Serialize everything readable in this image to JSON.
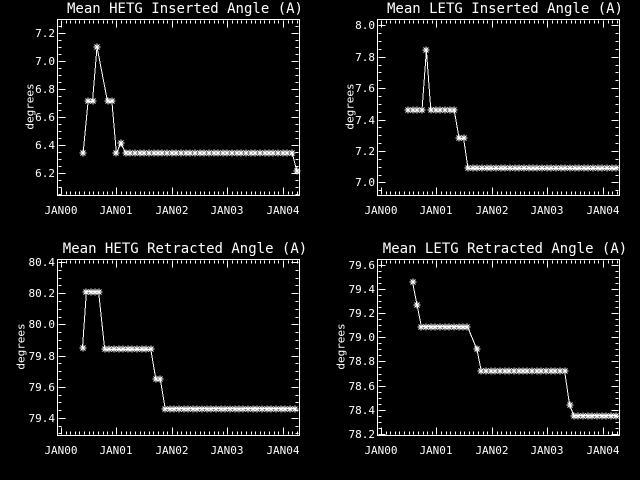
{
  "window": {
    "background": "#000000",
    "foreground": "#ffffff"
  },
  "chart_data": [
    {
      "type": "line",
      "title": "Mean HETG Inserted Angle (A)",
      "ylabel": "degrees",
      "series_color": "#ffffff",
      "marker": "asterisk",
      "grid": false,
      "xlim": [
        1999.93,
        2004.29
      ],
      "ylim": [
        6.04,
        7.3
      ],
      "xticks": [
        2000,
        2001,
        2002,
        2003,
        2004
      ],
      "xtick_labels": [
        "JAN00",
        "JAN01",
        "JAN02",
        "JAN03",
        "JAN04"
      ],
      "x_minor_step": 0.08333,
      "yticks": [
        6.2,
        6.4,
        6.6,
        6.8,
        7.0,
        7.2
      ],
      "ytick_labels": [
        "6.2",
        "6.4",
        "6.6",
        "6.8",
        "7.0",
        "7.2"
      ],
      "y_minor_step": 0.05,
      "points": [
        [
          2000.4,
          6.34
        ],
        [
          2000.49,
          6.71
        ],
        [
          2000.57,
          6.71
        ],
        [
          2000.65,
          7.1
        ],
        [
          2000.84,
          6.71
        ],
        [
          2000.92,
          6.71
        ],
        [
          2001.0,
          6.34
        ],
        [
          2001.08,
          6.41
        ],
        [
          2001.17,
          6.34
        ],
        [
          2001.25,
          6.34
        ],
        [
          2001.33,
          6.34
        ],
        [
          2001.42,
          6.34
        ],
        [
          2001.5,
          6.34
        ],
        [
          2001.58,
          6.34
        ],
        [
          2001.67,
          6.34
        ],
        [
          2001.75,
          6.34
        ],
        [
          2001.83,
          6.34
        ],
        [
          2001.92,
          6.34
        ],
        [
          2002.0,
          6.34
        ],
        [
          2002.08,
          6.34
        ],
        [
          2002.17,
          6.34
        ],
        [
          2002.25,
          6.34
        ],
        [
          2002.33,
          6.34
        ],
        [
          2002.42,
          6.34
        ],
        [
          2002.5,
          6.34
        ],
        [
          2002.58,
          6.34
        ],
        [
          2002.67,
          6.34
        ],
        [
          2002.75,
          6.34
        ],
        [
          2002.83,
          6.34
        ],
        [
          2002.92,
          6.34
        ],
        [
          2003.0,
          6.34
        ],
        [
          2003.08,
          6.34
        ],
        [
          2003.17,
          6.34
        ],
        [
          2003.25,
          6.34
        ],
        [
          2003.33,
          6.34
        ],
        [
          2003.42,
          6.34
        ],
        [
          2003.5,
          6.34
        ],
        [
          2003.58,
          6.34
        ],
        [
          2003.67,
          6.34
        ],
        [
          2003.75,
          6.34
        ],
        [
          2003.83,
          6.34
        ],
        [
          2003.92,
          6.34
        ],
        [
          2004.0,
          6.34
        ],
        [
          2004.08,
          6.34
        ],
        [
          2004.17,
          6.34
        ],
        [
          2004.25,
          6.21
        ]
      ]
    },
    {
      "type": "line",
      "title": "Mean LETG Inserted Angle (A)",
      "ylabel": "degrees",
      "series_color": "#ffffff",
      "marker": "asterisk",
      "grid": false,
      "xlim": [
        1999.93,
        2004.29
      ],
      "ylim": [
        6.92,
        8.04
      ],
      "xticks": [
        2000,
        2001,
        2002,
        2003,
        2004
      ],
      "xtick_labels": [
        "JAN00",
        "JAN01",
        "JAN02",
        "JAN03",
        "JAN04"
      ],
      "x_minor_step": 0.08333,
      "yticks": [
        7.0,
        7.2,
        7.4,
        7.6,
        7.8,
        8.0
      ],
      "ytick_labels": [
        "7.0",
        "7.2",
        "7.4",
        "7.6",
        "7.8",
        "8.0"
      ],
      "y_minor_step": 0.05,
      "points": [
        [
          2000.49,
          7.46
        ],
        [
          2000.57,
          7.46
        ],
        [
          2000.65,
          7.46
        ],
        [
          2000.74,
          7.46
        ],
        [
          2000.82,
          7.84
        ],
        [
          2000.9,
          7.46
        ],
        [
          2000.99,
          7.46
        ],
        [
          2001.07,
          7.46
        ],
        [
          2001.16,
          7.46
        ],
        [
          2001.24,
          7.46
        ],
        [
          2001.32,
          7.46
        ],
        [
          2001.41,
          7.28
        ],
        [
          2001.49,
          7.28
        ],
        [
          2001.57,
          7.09
        ],
        [
          2001.66,
          7.09
        ],
        [
          2001.74,
          7.09
        ],
        [
          2001.82,
          7.09
        ],
        [
          2001.91,
          7.09
        ],
        [
          2001.99,
          7.09
        ],
        [
          2002.07,
          7.09
        ],
        [
          2002.16,
          7.09
        ],
        [
          2002.24,
          7.09
        ],
        [
          2002.32,
          7.09
        ],
        [
          2002.41,
          7.09
        ],
        [
          2002.49,
          7.09
        ],
        [
          2002.57,
          7.09
        ],
        [
          2002.66,
          7.09
        ],
        [
          2002.74,
          7.09
        ],
        [
          2002.82,
          7.09
        ],
        [
          2002.91,
          7.09
        ],
        [
          2002.99,
          7.09
        ],
        [
          2003.07,
          7.09
        ],
        [
          2003.16,
          7.09
        ],
        [
          2003.24,
          7.09
        ],
        [
          2003.32,
          7.09
        ],
        [
          2003.41,
          7.09
        ],
        [
          2003.49,
          7.09
        ],
        [
          2003.57,
          7.09
        ],
        [
          2003.66,
          7.09
        ],
        [
          2003.74,
          7.09
        ],
        [
          2003.82,
          7.09
        ],
        [
          2003.91,
          7.09
        ],
        [
          2003.99,
          7.09
        ],
        [
          2004.07,
          7.09
        ],
        [
          2004.16,
          7.09
        ],
        [
          2004.24,
          7.09
        ]
      ]
    },
    {
      "type": "line",
      "title": "Mean HETG Retracted Angle (A)",
      "ylabel": "degrees",
      "series_color": "#ffffff",
      "marker": "asterisk",
      "grid": false,
      "xlim": [
        1999.93,
        2004.29
      ],
      "ylim": [
        79.29,
        80.42
      ],
      "xticks": [
        2000,
        2001,
        2002,
        2003,
        2004
      ],
      "xtick_labels": [
        "JAN00",
        "JAN01",
        "JAN02",
        "JAN03",
        "JAN04"
      ],
      "x_minor_step": 0.08333,
      "yticks": [
        79.4,
        79.6,
        79.8,
        80.0,
        80.2,
        80.4
      ],
      "ytick_labels": [
        "79.4",
        "79.6",
        "79.8",
        "80.0",
        "80.2",
        "80.4"
      ],
      "y_minor_step": 0.05,
      "points": [
        [
          2000.39,
          79.85
        ],
        [
          2000.46,
          80.21
        ],
        [
          2000.54,
          80.21
        ],
        [
          2000.62,
          80.21
        ],
        [
          2000.68,
          80.21
        ],
        [
          2000.79,
          79.84
        ],
        [
          2000.87,
          79.84
        ],
        [
          2000.96,
          79.84
        ],
        [
          2001.04,
          79.84
        ],
        [
          2001.12,
          79.84
        ],
        [
          2001.21,
          79.84
        ],
        [
          2001.29,
          79.84
        ],
        [
          2001.37,
          79.84
        ],
        [
          2001.46,
          79.84
        ],
        [
          2001.54,
          79.84
        ],
        [
          2001.62,
          79.84
        ],
        [
          2001.71,
          79.65
        ],
        [
          2001.79,
          79.65
        ],
        [
          2001.88,
          79.46
        ],
        [
          2001.96,
          79.46
        ],
        [
          2002.04,
          79.46
        ],
        [
          2002.13,
          79.46
        ],
        [
          2002.21,
          79.46
        ],
        [
          2002.29,
          79.46
        ],
        [
          2002.38,
          79.46
        ],
        [
          2002.46,
          79.46
        ],
        [
          2002.54,
          79.46
        ],
        [
          2002.63,
          79.46
        ],
        [
          2002.71,
          79.46
        ],
        [
          2002.79,
          79.46
        ],
        [
          2002.88,
          79.46
        ],
        [
          2002.96,
          79.46
        ],
        [
          2003.04,
          79.46
        ],
        [
          2003.13,
          79.46
        ],
        [
          2003.21,
          79.46
        ],
        [
          2003.29,
          79.46
        ],
        [
          2003.38,
          79.46
        ],
        [
          2003.46,
          79.46
        ],
        [
          2003.54,
          79.46
        ],
        [
          2003.63,
          79.46
        ],
        [
          2003.71,
          79.46
        ],
        [
          2003.79,
          79.46
        ],
        [
          2003.88,
          79.46
        ],
        [
          2003.96,
          79.46
        ],
        [
          2004.04,
          79.46
        ],
        [
          2004.13,
          79.46
        ],
        [
          2004.21,
          79.46
        ]
      ]
    },
    {
      "type": "line",
      "title": "Mean LETG Retracted Angle (A)",
      "ylabel": "degrees",
      "series_color": "#ffffff",
      "marker": "asterisk",
      "grid": false,
      "xlim": [
        1999.93,
        2004.29
      ],
      "ylim": [
        78.19,
        79.65
      ],
      "xticks": [
        2000,
        2001,
        2002,
        2003,
        2004
      ],
      "xtick_labels": [
        "JAN00",
        "JAN01",
        "JAN02",
        "JAN03",
        "JAN04"
      ],
      "x_minor_step": 0.08333,
      "yticks": [
        78.2,
        78.4,
        78.6,
        78.8,
        79.0,
        79.2,
        79.4,
        79.6
      ],
      "ytick_labels": [
        "78.2",
        "78.4",
        "78.6",
        "78.8",
        "79.0",
        "79.2",
        "79.4",
        "79.6"
      ],
      "y_minor_step": 0.05,
      "points": [
        [
          2000.57,
          79.46
        ],
        [
          2000.65,
          79.27
        ],
        [
          2000.73,
          79.09
        ],
        [
          2000.81,
          79.09
        ],
        [
          2000.9,
          79.09
        ],
        [
          2000.98,
          79.09
        ],
        [
          2001.06,
          79.09
        ],
        [
          2001.15,
          79.09
        ],
        [
          2001.23,
          79.09
        ],
        [
          2001.31,
          79.09
        ],
        [
          2001.4,
          79.09
        ],
        [
          2001.48,
          79.09
        ],
        [
          2001.56,
          79.09
        ],
        [
          2001.73,
          78.9
        ],
        [
          2001.81,
          78.72
        ],
        [
          2001.89,
          78.72
        ],
        [
          2001.98,
          78.72
        ],
        [
          2002.06,
          78.72
        ],
        [
          2002.14,
          78.72
        ],
        [
          2002.23,
          78.72
        ],
        [
          2002.31,
          78.72
        ],
        [
          2002.39,
          78.72
        ],
        [
          2002.48,
          78.72
        ],
        [
          2002.56,
          78.72
        ],
        [
          2002.64,
          78.72
        ],
        [
          2002.73,
          78.72
        ],
        [
          2002.81,
          78.72
        ],
        [
          2002.89,
          78.72
        ],
        [
          2002.98,
          78.72
        ],
        [
          2003.06,
          78.72
        ],
        [
          2003.14,
          78.72
        ],
        [
          2003.23,
          78.72
        ],
        [
          2003.31,
          78.72
        ],
        [
          2003.4,
          78.44
        ],
        [
          2003.48,
          78.35
        ],
        [
          2003.56,
          78.35
        ],
        [
          2003.65,
          78.35
        ],
        [
          2003.73,
          78.35
        ],
        [
          2003.81,
          78.35
        ],
        [
          2003.9,
          78.35
        ],
        [
          2003.98,
          78.35
        ],
        [
          2004.06,
          78.35
        ],
        [
          2004.15,
          78.35
        ],
        [
          2004.23,
          78.35
        ]
      ]
    }
  ]
}
